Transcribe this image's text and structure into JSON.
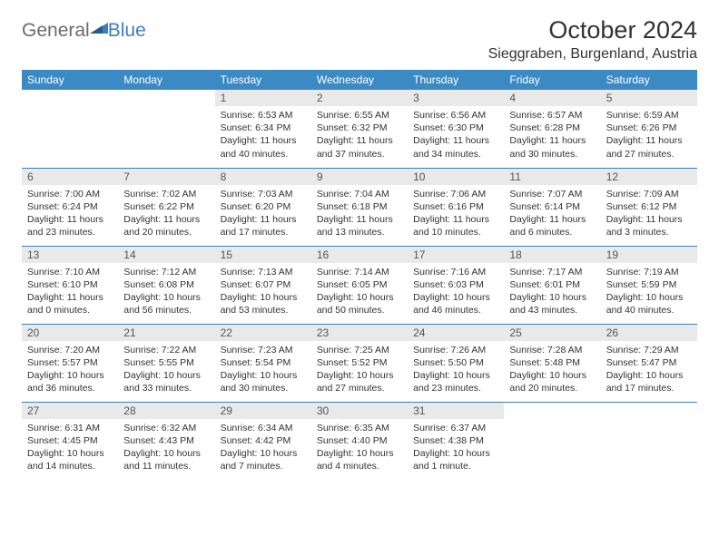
{
  "logo": {
    "text1": "General",
    "text2": "Blue"
  },
  "title": "October 2024",
  "location": "Sieggraben, Burgenland, Austria",
  "colors": {
    "header_bg": "#3b8ac4",
    "header_fg": "#ffffff",
    "daynum_bg": "#e9e9e9",
    "border": "#3b7fc4",
    "logo_gray": "#6b6b6b",
    "logo_blue": "#3b7fc4"
  },
  "weekdays": [
    "Sunday",
    "Monday",
    "Tuesday",
    "Wednesday",
    "Thursday",
    "Friday",
    "Saturday"
  ],
  "weeks": [
    [
      null,
      null,
      {
        "n": "1",
        "sunrise": "Sunrise: 6:53 AM",
        "sunset": "Sunset: 6:34 PM",
        "day1": "Daylight: 11 hours",
        "day2": "and 40 minutes."
      },
      {
        "n": "2",
        "sunrise": "Sunrise: 6:55 AM",
        "sunset": "Sunset: 6:32 PM",
        "day1": "Daylight: 11 hours",
        "day2": "and 37 minutes."
      },
      {
        "n": "3",
        "sunrise": "Sunrise: 6:56 AM",
        "sunset": "Sunset: 6:30 PM",
        "day1": "Daylight: 11 hours",
        "day2": "and 34 minutes."
      },
      {
        "n": "4",
        "sunrise": "Sunrise: 6:57 AM",
        "sunset": "Sunset: 6:28 PM",
        "day1": "Daylight: 11 hours",
        "day2": "and 30 minutes."
      },
      {
        "n": "5",
        "sunrise": "Sunrise: 6:59 AM",
        "sunset": "Sunset: 6:26 PM",
        "day1": "Daylight: 11 hours",
        "day2": "and 27 minutes."
      }
    ],
    [
      {
        "n": "6",
        "sunrise": "Sunrise: 7:00 AM",
        "sunset": "Sunset: 6:24 PM",
        "day1": "Daylight: 11 hours",
        "day2": "and 23 minutes."
      },
      {
        "n": "7",
        "sunrise": "Sunrise: 7:02 AM",
        "sunset": "Sunset: 6:22 PM",
        "day1": "Daylight: 11 hours",
        "day2": "and 20 minutes."
      },
      {
        "n": "8",
        "sunrise": "Sunrise: 7:03 AM",
        "sunset": "Sunset: 6:20 PM",
        "day1": "Daylight: 11 hours",
        "day2": "and 17 minutes."
      },
      {
        "n": "9",
        "sunrise": "Sunrise: 7:04 AM",
        "sunset": "Sunset: 6:18 PM",
        "day1": "Daylight: 11 hours",
        "day2": "and 13 minutes."
      },
      {
        "n": "10",
        "sunrise": "Sunrise: 7:06 AM",
        "sunset": "Sunset: 6:16 PM",
        "day1": "Daylight: 11 hours",
        "day2": "and 10 minutes."
      },
      {
        "n": "11",
        "sunrise": "Sunrise: 7:07 AM",
        "sunset": "Sunset: 6:14 PM",
        "day1": "Daylight: 11 hours",
        "day2": "and 6 minutes."
      },
      {
        "n": "12",
        "sunrise": "Sunrise: 7:09 AM",
        "sunset": "Sunset: 6:12 PM",
        "day1": "Daylight: 11 hours",
        "day2": "and 3 minutes."
      }
    ],
    [
      {
        "n": "13",
        "sunrise": "Sunrise: 7:10 AM",
        "sunset": "Sunset: 6:10 PM",
        "day1": "Daylight: 11 hours",
        "day2": "and 0 minutes."
      },
      {
        "n": "14",
        "sunrise": "Sunrise: 7:12 AM",
        "sunset": "Sunset: 6:08 PM",
        "day1": "Daylight: 10 hours",
        "day2": "and 56 minutes."
      },
      {
        "n": "15",
        "sunrise": "Sunrise: 7:13 AM",
        "sunset": "Sunset: 6:07 PM",
        "day1": "Daylight: 10 hours",
        "day2": "and 53 minutes."
      },
      {
        "n": "16",
        "sunrise": "Sunrise: 7:14 AM",
        "sunset": "Sunset: 6:05 PM",
        "day1": "Daylight: 10 hours",
        "day2": "and 50 minutes."
      },
      {
        "n": "17",
        "sunrise": "Sunrise: 7:16 AM",
        "sunset": "Sunset: 6:03 PM",
        "day1": "Daylight: 10 hours",
        "day2": "and 46 minutes."
      },
      {
        "n": "18",
        "sunrise": "Sunrise: 7:17 AM",
        "sunset": "Sunset: 6:01 PM",
        "day1": "Daylight: 10 hours",
        "day2": "and 43 minutes."
      },
      {
        "n": "19",
        "sunrise": "Sunrise: 7:19 AM",
        "sunset": "Sunset: 5:59 PM",
        "day1": "Daylight: 10 hours",
        "day2": "and 40 minutes."
      }
    ],
    [
      {
        "n": "20",
        "sunrise": "Sunrise: 7:20 AM",
        "sunset": "Sunset: 5:57 PM",
        "day1": "Daylight: 10 hours",
        "day2": "and 36 minutes."
      },
      {
        "n": "21",
        "sunrise": "Sunrise: 7:22 AM",
        "sunset": "Sunset: 5:55 PM",
        "day1": "Daylight: 10 hours",
        "day2": "and 33 minutes."
      },
      {
        "n": "22",
        "sunrise": "Sunrise: 7:23 AM",
        "sunset": "Sunset: 5:54 PM",
        "day1": "Daylight: 10 hours",
        "day2": "and 30 minutes."
      },
      {
        "n": "23",
        "sunrise": "Sunrise: 7:25 AM",
        "sunset": "Sunset: 5:52 PM",
        "day1": "Daylight: 10 hours",
        "day2": "and 27 minutes."
      },
      {
        "n": "24",
        "sunrise": "Sunrise: 7:26 AM",
        "sunset": "Sunset: 5:50 PM",
        "day1": "Daylight: 10 hours",
        "day2": "and 23 minutes."
      },
      {
        "n": "25",
        "sunrise": "Sunrise: 7:28 AM",
        "sunset": "Sunset: 5:48 PM",
        "day1": "Daylight: 10 hours",
        "day2": "and 20 minutes."
      },
      {
        "n": "26",
        "sunrise": "Sunrise: 7:29 AM",
        "sunset": "Sunset: 5:47 PM",
        "day1": "Daylight: 10 hours",
        "day2": "and 17 minutes."
      }
    ],
    [
      {
        "n": "27",
        "sunrise": "Sunrise: 6:31 AM",
        "sunset": "Sunset: 4:45 PM",
        "day1": "Daylight: 10 hours",
        "day2": "and 14 minutes."
      },
      {
        "n": "28",
        "sunrise": "Sunrise: 6:32 AM",
        "sunset": "Sunset: 4:43 PM",
        "day1": "Daylight: 10 hours",
        "day2": "and 11 minutes."
      },
      {
        "n": "29",
        "sunrise": "Sunrise: 6:34 AM",
        "sunset": "Sunset: 4:42 PM",
        "day1": "Daylight: 10 hours",
        "day2": "and 7 minutes."
      },
      {
        "n": "30",
        "sunrise": "Sunrise: 6:35 AM",
        "sunset": "Sunset: 4:40 PM",
        "day1": "Daylight: 10 hours",
        "day2": "and 4 minutes."
      },
      {
        "n": "31",
        "sunrise": "Sunrise: 6:37 AM",
        "sunset": "Sunset: 4:38 PM",
        "day1": "Daylight: 10 hours",
        "day2": "and 1 minute."
      },
      null,
      null
    ]
  ]
}
